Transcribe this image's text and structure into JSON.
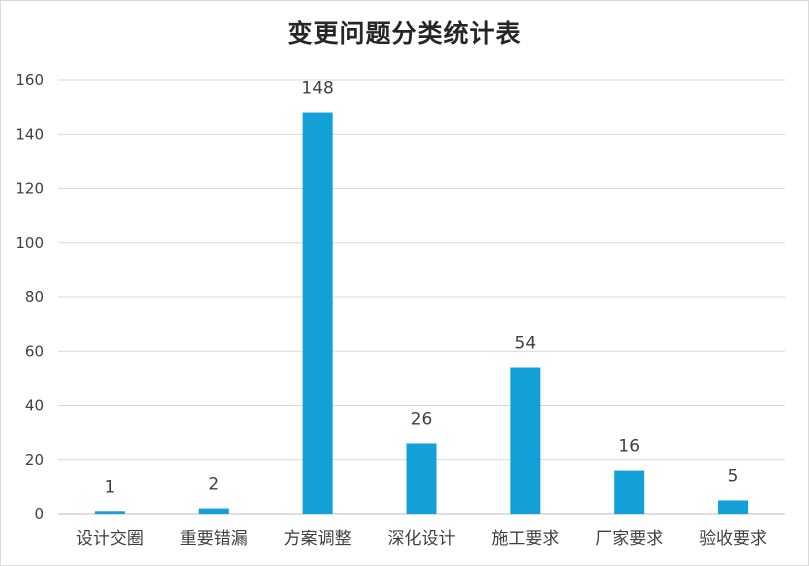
{
  "chart_data": {
    "type": "bar",
    "title": "变更问题分类统计表",
    "categories": [
      "设计交圈",
      "重要错漏",
      "方案调整",
      "深化设计",
      "施工要求",
      "厂家要求",
      "验收要求"
    ],
    "values": [
      1,
      2,
      148,
      26,
      54,
      16,
      5
    ],
    "ylim": [
      0,
      160
    ],
    "ytick_step": 20,
    "grid": true,
    "data_labels": true,
    "colors": {
      "bar": "#12a0d7",
      "grid": "#d9d9d9",
      "axis": "#bfbfbf"
    }
  }
}
